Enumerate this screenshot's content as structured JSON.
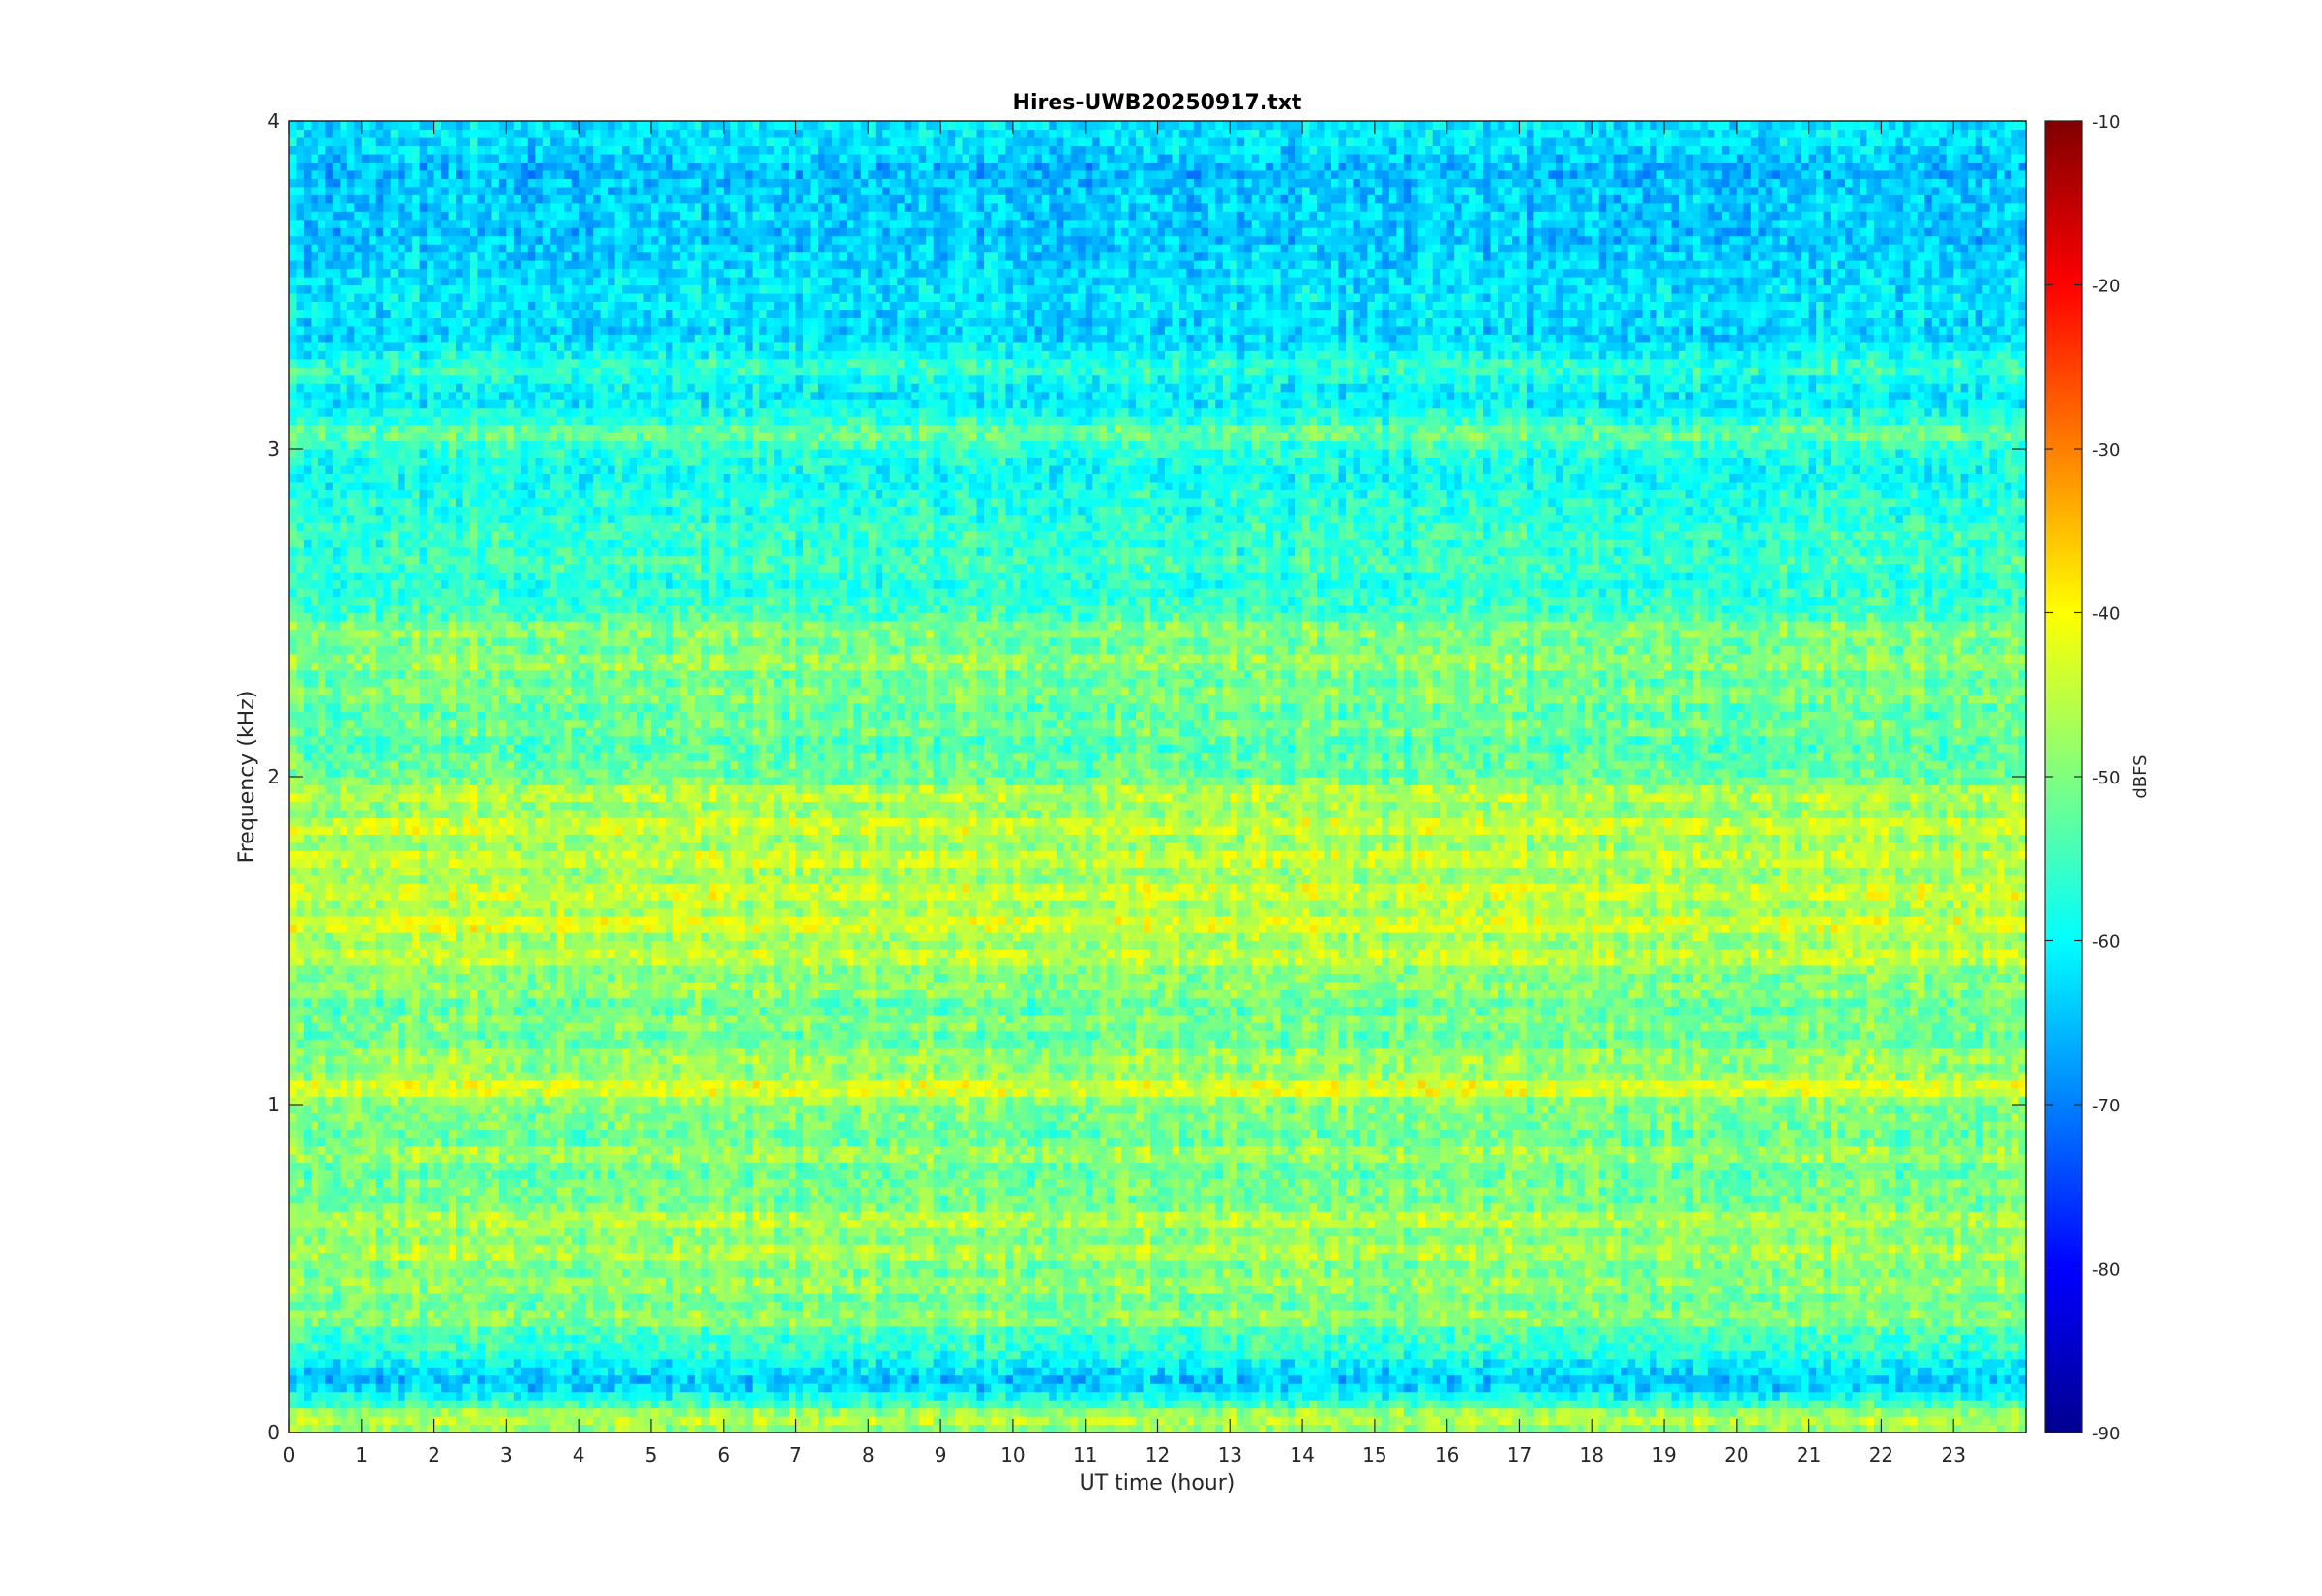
{
  "chart_data": {
    "type": "heatmap",
    "title": "Hires-UWB20250917.txt",
    "xlabel": "UT time (hour)",
    "ylabel": "Frequency (kHz)",
    "xlim": [
      0,
      24
    ],
    "ylim": [
      0,
      4
    ],
    "x_ticks": [
      "0",
      "1",
      "2",
      "3",
      "4",
      "5",
      "6",
      "7",
      "8",
      "9",
      "10",
      "11",
      "12",
      "13",
      "14",
      "15",
      "16",
      "17",
      "18",
      "19",
      "20",
      "21",
      "22",
      "23"
    ],
    "y_ticks": [
      "0",
      "1",
      "2",
      "3",
      "4"
    ],
    "colorbar": {
      "label": "dBFS",
      "range": [
        -90,
        -10
      ],
      "ticks": [
        "-90",
        "-80",
        "-70",
        "-60",
        "-50",
        "-40",
        "-30",
        "-20",
        "-10"
      ],
      "colormap": "jet"
    },
    "background_level_dBFS": -62,
    "time_resolution_hours": 0.1,
    "frequency_bands": [
      {
        "f_khz": 0.05,
        "level": -44,
        "note": "strong continuous band"
      },
      {
        "f_khz": 0.15,
        "level": -66
      },
      {
        "f_khz": 0.25,
        "level": -56
      },
      {
        "f_khz": 0.35,
        "level": -48
      },
      {
        "f_khz": 0.45,
        "level": -47
      },
      {
        "f_khz": 0.55,
        "level": -45
      },
      {
        "f_khz": 0.65,
        "level": -44
      },
      {
        "f_khz": 0.75,
        "level": -50
      },
      {
        "f_khz": 0.85,
        "level": -46
      },
      {
        "f_khz": 0.95,
        "level": -50
      },
      {
        "f_khz": 1.05,
        "level": -40
      },
      {
        "f_khz": 1.15,
        "level": -47
      },
      {
        "f_khz": 1.25,
        "level": -49
      },
      {
        "f_khz": 1.35,
        "level": -48
      },
      {
        "f_khz": 1.45,
        "level": -43
      },
      {
        "f_khz": 1.55,
        "level": -41
      },
      {
        "f_khz": 1.65,
        "level": -42
      },
      {
        "f_khz": 1.75,
        "level": -43
      },
      {
        "f_khz": 1.85,
        "level": -42
      },
      {
        "f_khz": 1.95,
        "level": -44
      },
      {
        "f_khz": 2.05,
        "level": -52
      },
      {
        "f_khz": 2.15,
        "level": -50
      },
      {
        "f_khz": 2.25,
        "level": -49
      },
      {
        "f_khz": 2.35,
        "level": -47
      },
      {
        "f_khz": 2.45,
        "level": -48
      },
      {
        "f_khz": 2.55,
        "level": -56
      },
      {
        "f_khz": 2.65,
        "level": -54
      },
      {
        "f_khz": 2.75,
        "level": -55
      },
      {
        "f_khz": 2.85,
        "level": -57
      },
      {
        "f_khz": 2.95,
        "level": -59
      },
      {
        "f_khz": 3.05,
        "level": -50
      },
      {
        "f_khz": 3.15,
        "level": -62
      },
      {
        "f_khz": 3.25,
        "level": -55
      },
      {
        "f_khz": 3.35,
        "level": -64
      },
      {
        "f_khz": 3.45,
        "level": -61
      },
      {
        "f_khz": 3.55,
        "level": -63
      },
      {
        "f_khz": 3.65,
        "level": -65
      },
      {
        "f_khz": 3.75,
        "level": -64
      },
      {
        "f_khz": 3.85,
        "level": -66
      },
      {
        "f_khz": 3.95,
        "level": -62
      }
    ]
  }
}
